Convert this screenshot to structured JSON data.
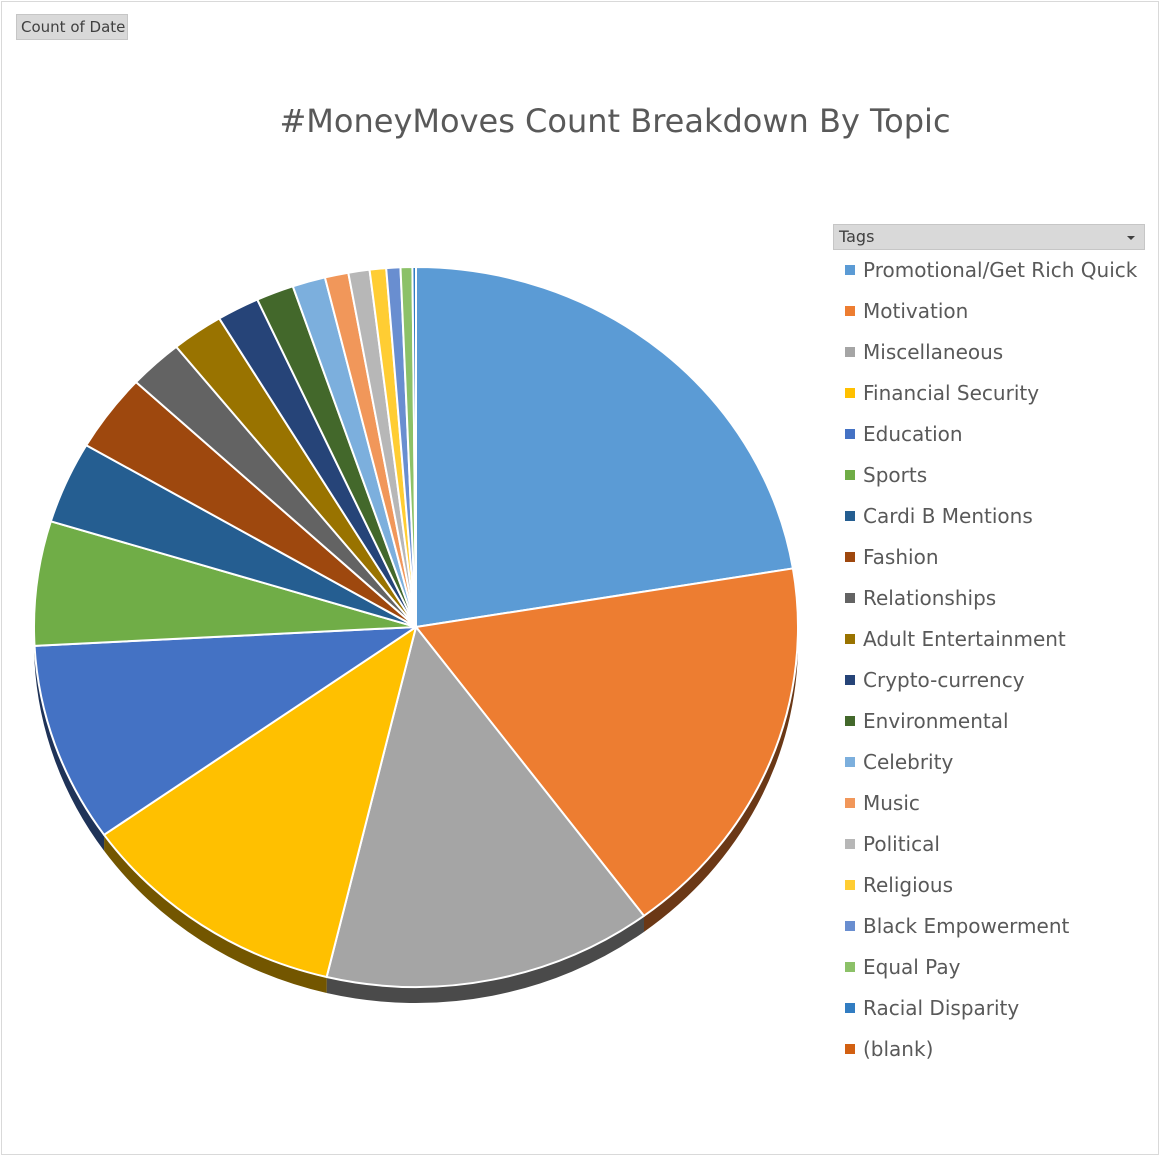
{
  "pivot": {
    "field_button_label": "Count of Date",
    "filter_button_label": "Tags"
  },
  "chart_data": {
    "type": "pie",
    "title": "#MoneyMoves Count Breakdown By Topic",
    "legend_position": "right",
    "slices": [
      {
        "label": "Promotional/Get Rich Quick",
        "value": 22.5,
        "color": "#5b9bd5"
      },
      {
        "label": "Motivation",
        "value": 17.5,
        "color": "#ed7d31"
      },
      {
        "label": "Miscellaneous",
        "value": 14.0,
        "color": "#a5a5a5"
      },
      {
        "label": "Financial Security",
        "value": 11.5,
        "color": "#ffc000"
      },
      {
        "label": "Education",
        "value": 9.0,
        "color": "#4472c4"
      },
      {
        "label": "Sports",
        "value": 5.6,
        "color": "#70ad47"
      },
      {
        "label": "Cardi B Mentions",
        "value": 3.7,
        "color": "#255e91"
      },
      {
        "label": "Fashion",
        "value": 3.5,
        "color": "#9e480e"
      },
      {
        "label": "Relationships",
        "value": 2.3,
        "color": "#636363"
      },
      {
        "label": "Adult Entertainment",
        "value": 2.2,
        "color": "#997300"
      },
      {
        "label": "Crypto-currency",
        "value": 1.8,
        "color": "#264478"
      },
      {
        "label": "Environmental",
        "value": 1.6,
        "color": "#43682b"
      },
      {
        "label": "Celebrity",
        "value": 1.4,
        "color": "#7cafdd"
      },
      {
        "label": "Music",
        "value": 1.0,
        "color": "#f1975a"
      },
      {
        "label": "Political",
        "value": 0.9,
        "color": "#b7b7b7"
      },
      {
        "label": "Religious",
        "value": 0.7,
        "color": "#ffcd33"
      },
      {
        "label": "Black Empowerment",
        "value": 0.6,
        "color": "#698ed0"
      },
      {
        "label": "Equal Pay",
        "value": 0.5,
        "color": "#8cc168"
      },
      {
        "label": "Racial Disparity",
        "value": 0.15,
        "color": "#327dc2"
      },
      {
        "label": "(blank)",
        "value": 0.0,
        "color": "#d26012"
      }
    ]
  }
}
